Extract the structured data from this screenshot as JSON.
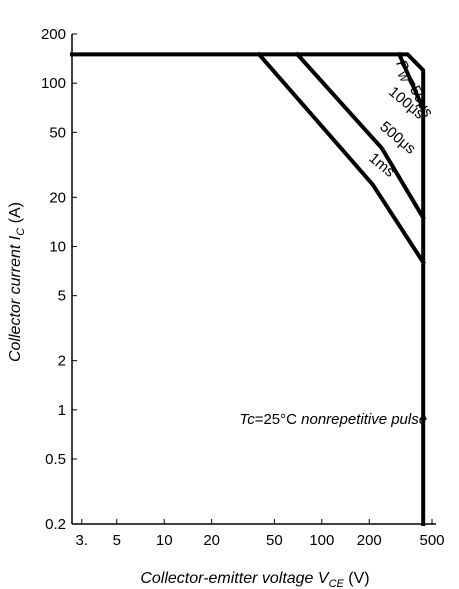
{
  "chart_data": {
    "type": "line",
    "title": "",
    "xlabel": "Collector-emitter voltage V_CE (V)",
    "xlabel_main": "Collector-emitter voltage ",
    "xlabel_sym": "V",
    "xlabel_sub": "CE",
    "xlabel_unit": " (V)",
    "ylabel": "Collector current I_C (A)",
    "ylabel_main": "Collector current ",
    "ylabel_sym": "I",
    "ylabel_sub": "C",
    "ylabel_unit": " (A)",
    "x_scale": "log",
    "y_scale": "log",
    "xlim": [
      2.6,
      500
    ],
    "ylim": [
      0.2,
      200
    ],
    "grid": false,
    "x_ticks": [
      {
        "value": 3,
        "label": "3."
      },
      {
        "value": 5,
        "label": "5"
      },
      {
        "value": 10,
        "label": "10"
      },
      {
        "value": 20,
        "label": "20"
      },
      {
        "value": 50,
        "label": "50"
      },
      {
        "value": 100,
        "label": "100"
      },
      {
        "value": 200,
        "label": "200"
      },
      {
        "value": 500,
        "label": "500"
      }
    ],
    "y_ticks": [
      {
        "value": 200,
        "label": "200"
      },
      {
        "value": 100,
        "label": "100"
      },
      {
        "value": 50,
        "label": "50"
      },
      {
        "value": 20,
        "label": "20"
      },
      {
        "value": 10,
        "label": "10"
      },
      {
        "value": 5,
        "label": "5"
      },
      {
        "value": 2,
        "label": "2"
      },
      {
        "value": 1,
        "label": "1"
      },
      {
        "value": 0.5,
        "label": "0.5"
      },
      {
        "value": 0.2,
        "label": "0.2"
      }
    ],
    "series": [
      {
        "name": "Pw=50μs",
        "points": [
          [
            2.6,
            150
          ],
          [
            350,
            150
          ],
          [
            440,
            120
          ],
          [
            440,
            0.2
          ]
        ]
      },
      {
        "name": "100μs",
        "points": [
          [
            310,
            150
          ],
          [
            430,
            73
          ],
          [
            440,
            70
          ]
        ]
      },
      {
        "name": "500μs",
        "points": [
          [
            70,
            150
          ],
          [
            240,
            40
          ],
          [
            440,
            15
          ]
        ]
      },
      {
        "name": "1ms",
        "points": [
          [
            40,
            150
          ],
          [
            210,
            24
          ],
          [
            440,
            8
          ]
        ]
      }
    ],
    "labels": [
      {
        "text_pre": "P",
        "text_sub": "W",
        "text_post": "=50μs",
        "x": 365,
        "y": 90,
        "rotate": 62
      },
      {
        "text": "100μs",
        "x": 330,
        "y": 72,
        "rotate": 40
      },
      {
        "text": "500μs",
        "x": 290,
        "y": 44,
        "rotate": 40
      },
      {
        "text": "1ms",
        "x": 230,
        "y": 30,
        "rotate": 40
      }
    ],
    "annotation": {
      "tc": "Tc",
      "eq": "=25°C",
      "desc": " nonrepetitive pulse",
      "x": 30,
      "y": 0.82
    }
  }
}
